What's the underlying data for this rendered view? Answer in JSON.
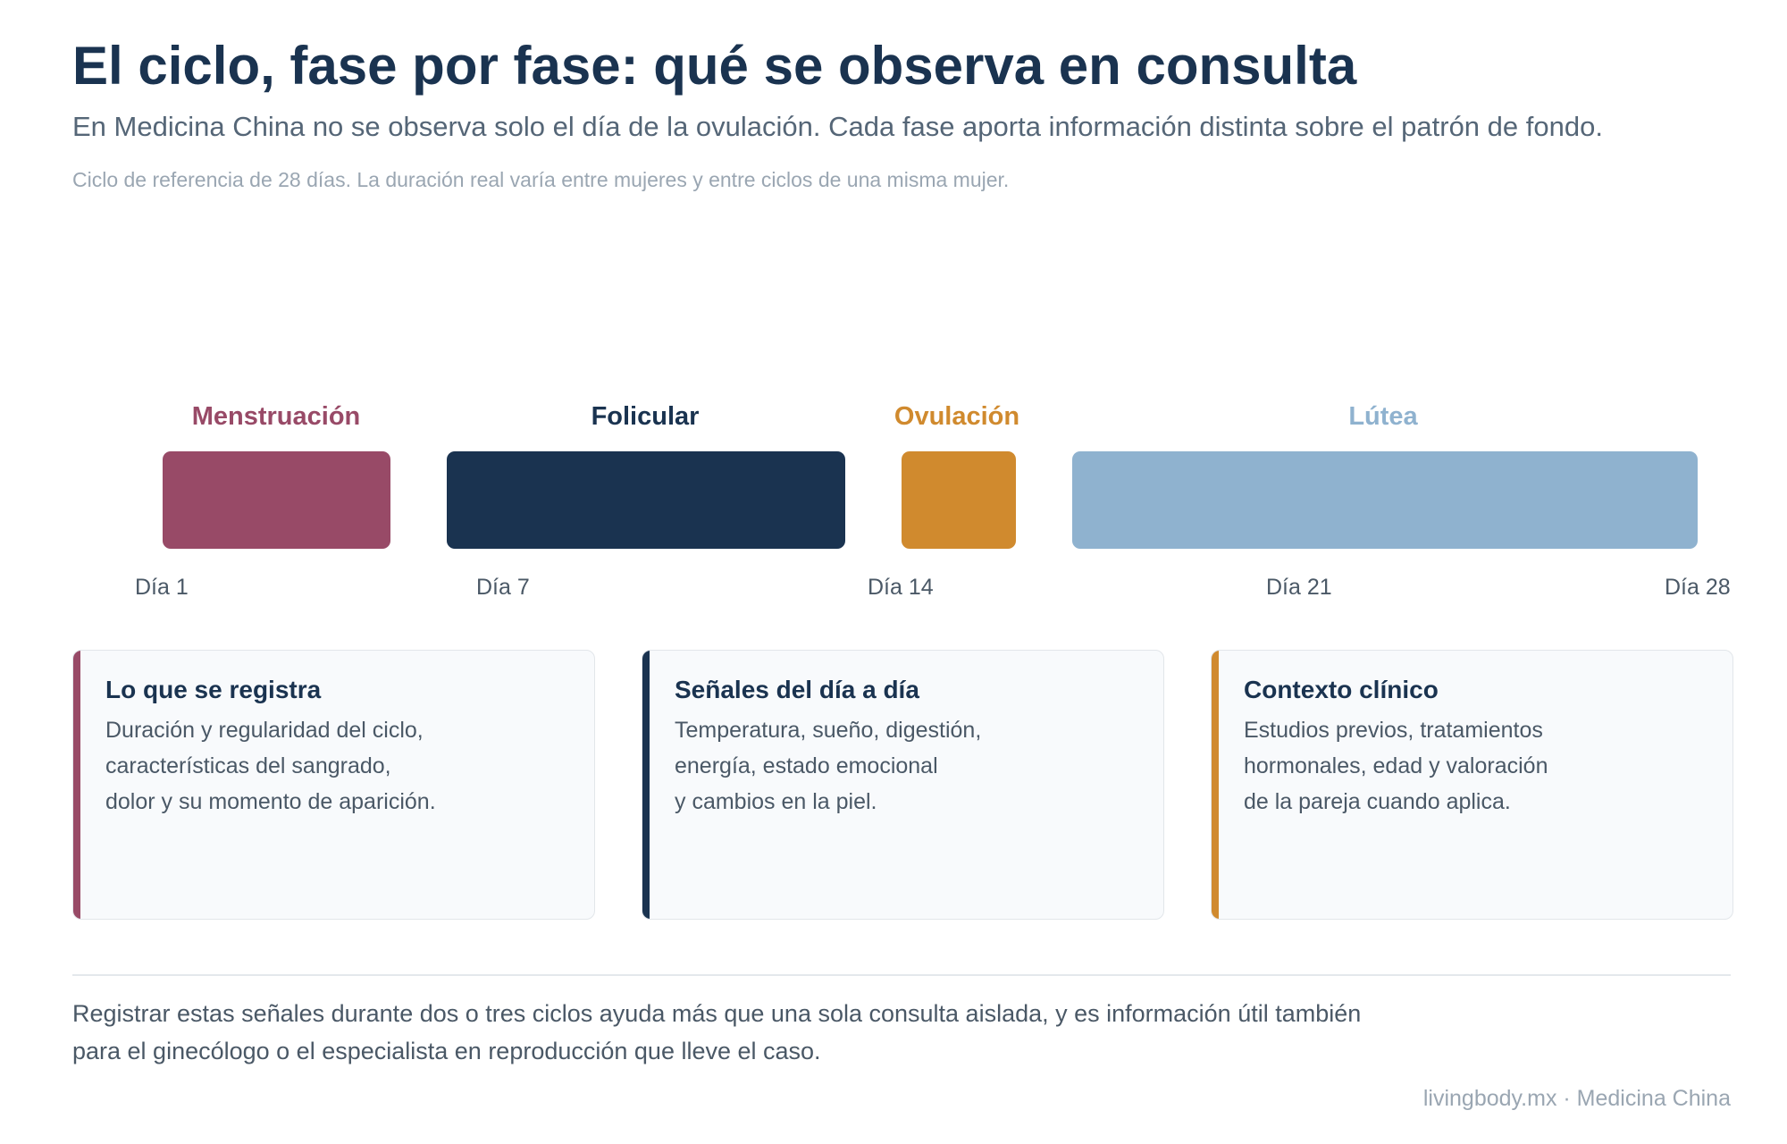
{
  "header": {
    "title": "El ciclo, fase por fase: qué se observa en consulta",
    "subtitle": "En Medicina China no se observa solo el día de la ovulación. Cada fase aporta información distinta sobre el patrón de fondo.",
    "note": "Ciclo de referencia de 28 días. La duración real varía entre mujeres y entre ciclos de una misma mujer."
  },
  "timeline": {
    "phases": [
      {
        "label": "Menstruación",
        "color": "#984a67",
        "label_color": "#984a67"
      },
      {
        "label": "Folicular",
        "color": "#1a3350",
        "label_color": "#1a3350"
      },
      {
        "label": "Ovulación",
        "color": "#d08a2e",
        "label_color": "#d08a2e"
      },
      {
        "label": "Lútea",
        "color": "#8fb2cf",
        "label_color": "#8fb2cf"
      }
    ],
    "ticks": [
      "Día 1",
      "Día 7",
      "Día 14",
      "Día 21",
      "Día 28"
    ]
  },
  "cards": [
    {
      "title": "Lo que se registra",
      "accent": "#984a67",
      "lines": [
        "Duración y regularidad del ciclo,",
        "características del sangrado,",
        "dolor y su momento de aparición."
      ]
    },
    {
      "title": "Señales del día a día",
      "accent": "#1a3350",
      "lines": [
        "Temperatura, sueño, digestión,",
        "energía, estado emocional",
        "y cambios en la piel."
      ]
    },
    {
      "title": "Contexto clínico",
      "accent": "#d08a2e",
      "lines": [
        "Estudios previos, tratamientos",
        "hormonales, edad y valoración",
        "de la pareja cuando aplica."
      ]
    }
  ],
  "footer": {
    "lines": [
      "Registrar estas señales durante dos o tres ciclos ayuda más que una sola consulta aislada, y es información útil también",
      "para el ginecólogo o el especialista en reproducción que lleve el caso."
    ],
    "credit": "livingbody.mx · Medicina China"
  }
}
